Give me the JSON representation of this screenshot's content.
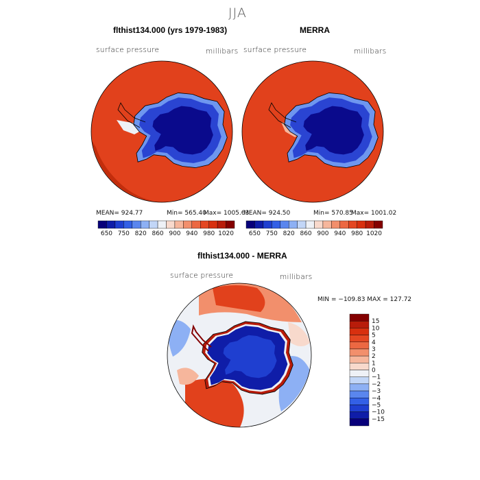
{
  "figure": {
    "title": "JJA"
  },
  "panels": [
    {
      "title": "flthist134.000 (yrs 1979-1983)",
      "variable": "surface pressure",
      "units": "millibars",
      "stats": {
        "mean": "MEAN= 924.77",
        "min": "Min= 565.40",
        "max": "Max= 1005.63"
      }
    },
    {
      "title": "MERRA",
      "variable": "surface pressure",
      "units": "millibars",
      "stats": {
        "mean": "MEAN= 924.50",
        "min": "Min= 570.85",
        "max": "Max= 1001.02"
      }
    },
    {
      "title": "flthist134.000 - MERRA",
      "variable": "surface pressure",
      "units": "millibars",
      "stats": {
        "minmax": "MIN = −109.83 MAX = 127.72"
      }
    }
  ],
  "colorbar_abs": {
    "colors": [
      "#08007a",
      "#0f1da8",
      "#1f3fd0",
      "#3360e6",
      "#5a86ee",
      "#8db0f4",
      "#c2d6f7",
      "#eef1f6",
      "#f8d9cc",
      "#f6b69c",
      "#f28f6c",
      "#ec6842",
      "#e44722",
      "#d8300f",
      "#b81c0a",
      "#840000"
    ],
    "labels": [
      "650",
      "750",
      "820",
      "860",
      "900",
      "940",
      "980",
      "1020"
    ]
  },
  "colorbar_diff": {
    "colors": [
      "#840000",
      "#b81c0a",
      "#d8300f",
      "#e44722",
      "#ec6842",
      "#f28f6c",
      "#f6b69c",
      "#f8d9cc",
      "#eef1f6",
      "#c2d6f7",
      "#8db0f4",
      "#5a86ee",
      "#3360e6",
      "#1f3fd0",
      "#0f1da8",
      "#08007a"
    ],
    "labels": [
      "15",
      "10",
      "5",
      "4",
      "3",
      "2",
      "1",
      "0",
      "−1",
      "−2",
      "−3",
      "−4",
      "−5",
      "−10",
      "−15"
    ]
  },
  "colors": {
    "ocean_warm": "#e1411c",
    "ocean_dark": "#c22d0c",
    "ice_deep": "#0a0a8c",
    "ice_mid": "#2a44d2",
    "ice_edge": "#6e96ef",
    "coast_white": "#eef1f6",
    "diff_pos": "#e1411c",
    "diff_light_pos": "#f6b69c",
    "diff_neg": "#5a86ee"
  }
}
